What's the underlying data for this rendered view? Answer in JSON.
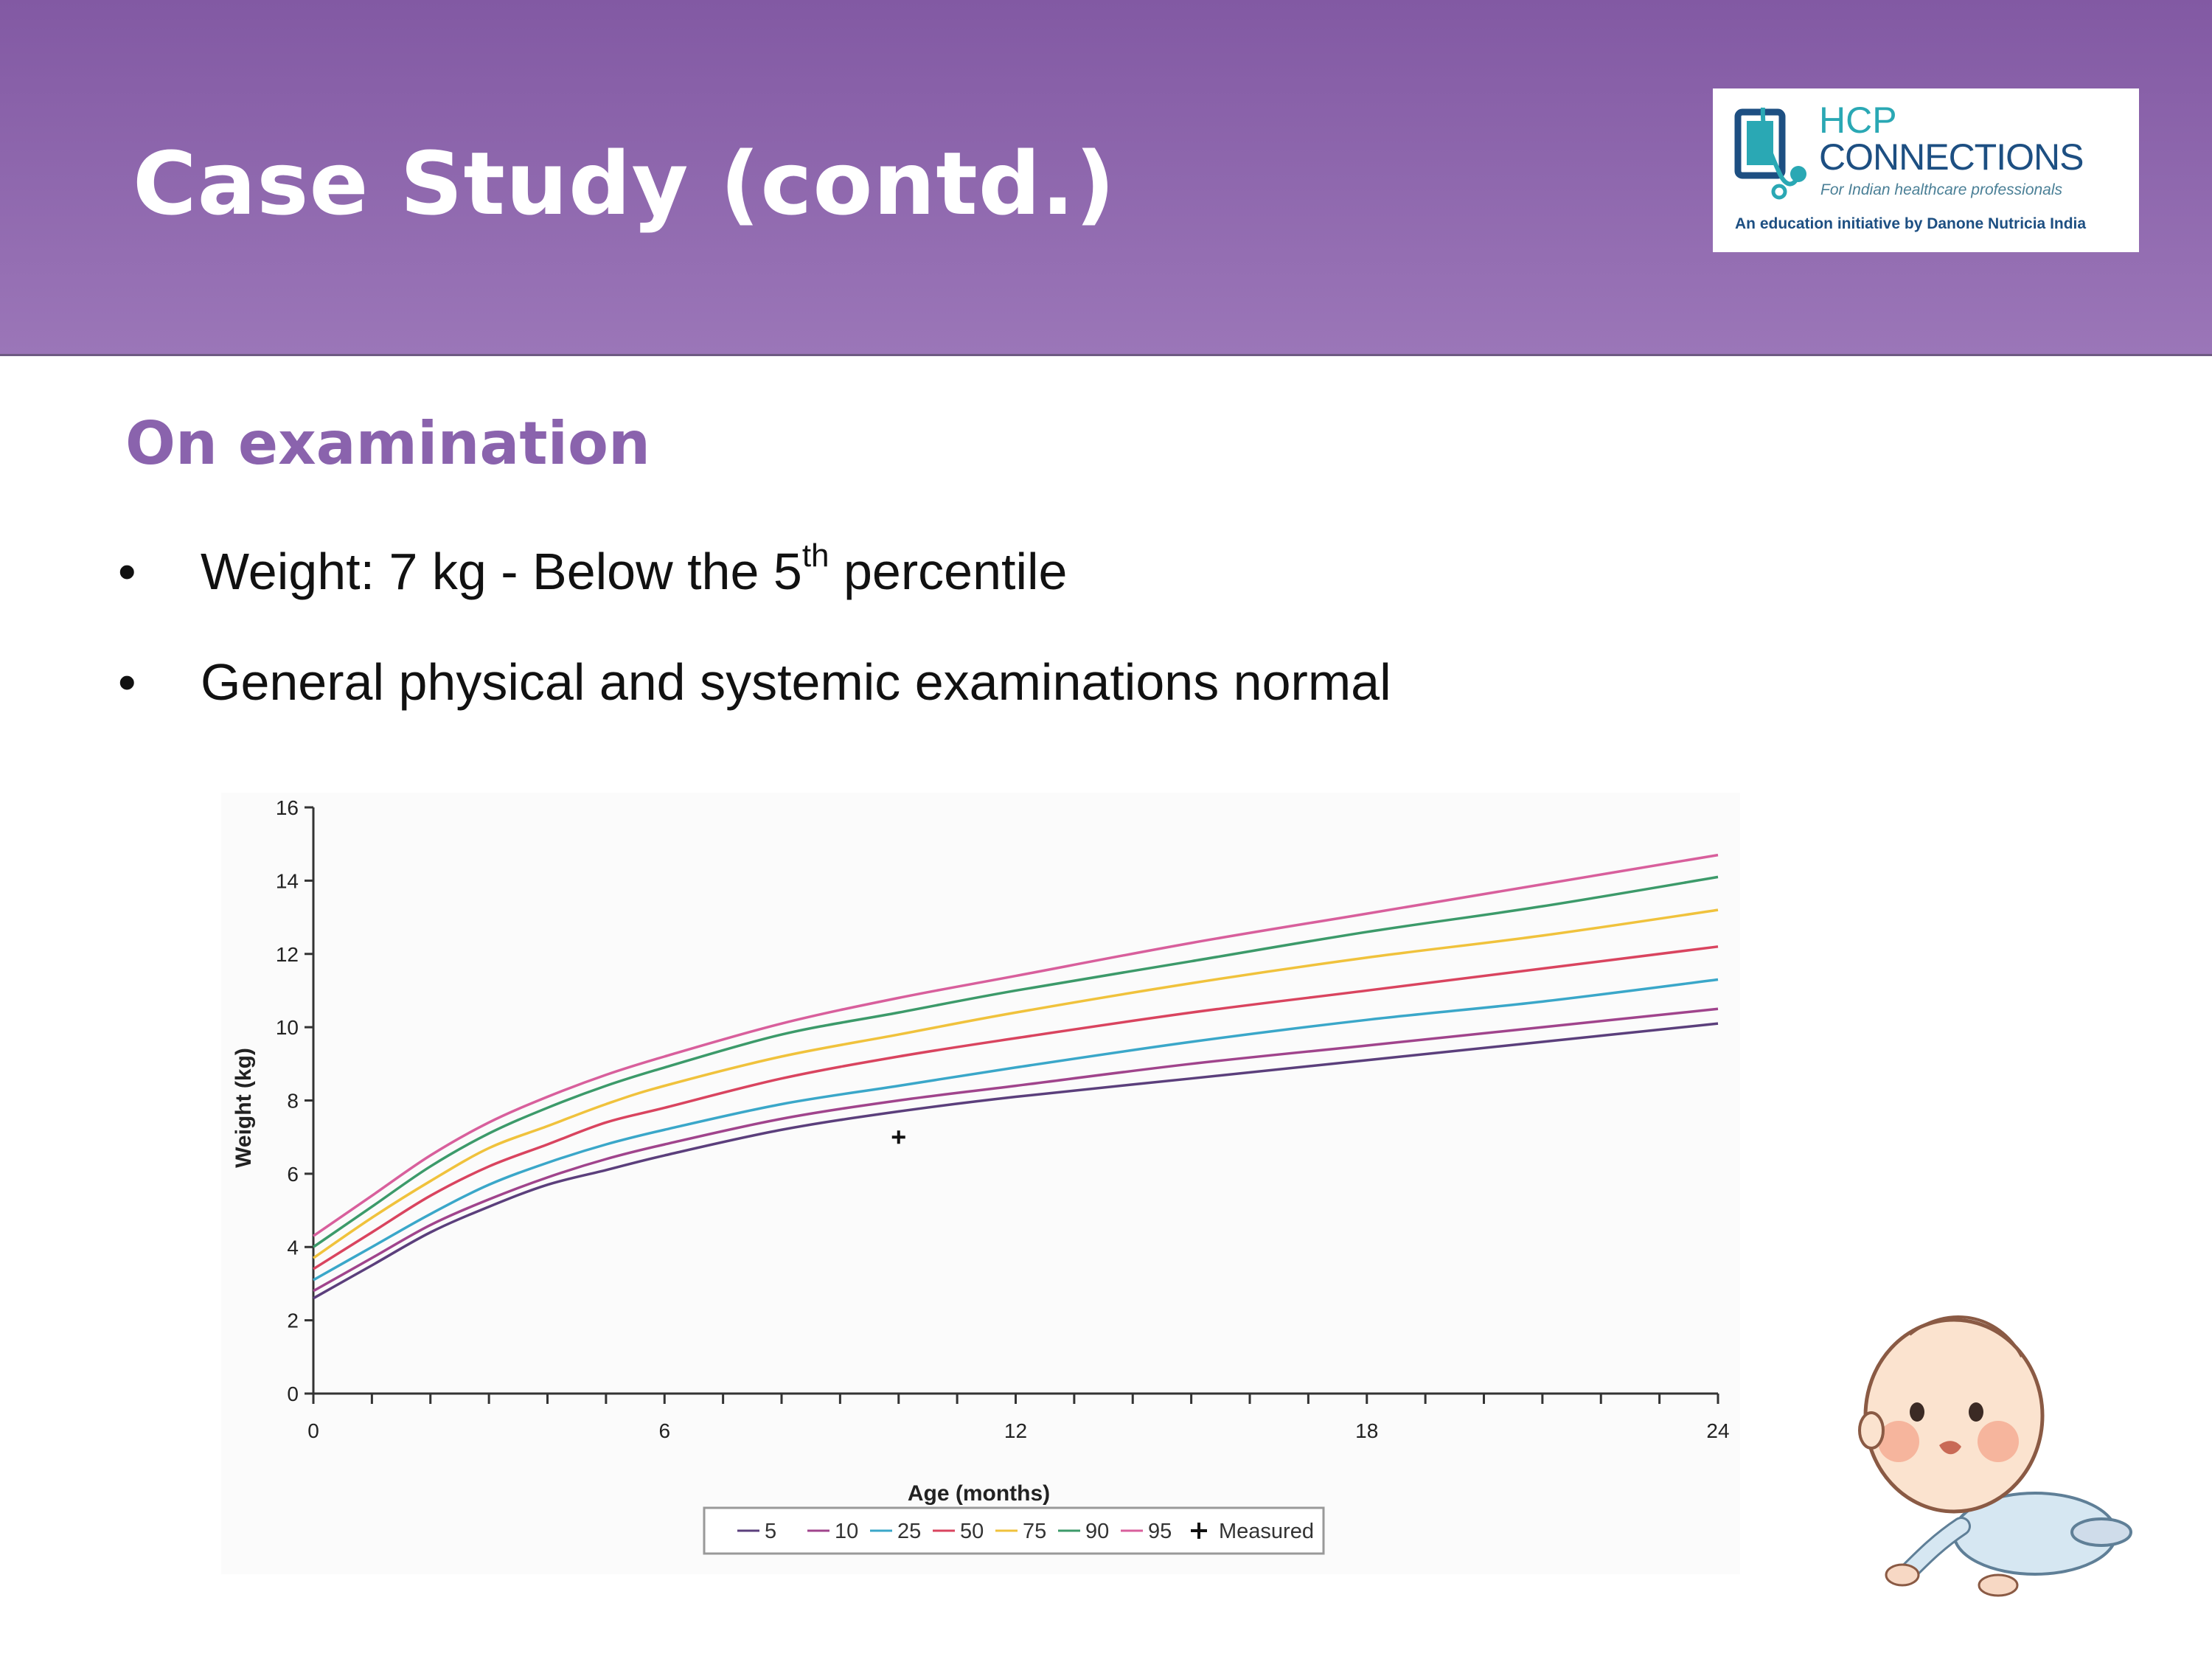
{
  "slide": {
    "title": "Case Study (contd.)",
    "section_heading": "On examination",
    "bullet_marker": "•",
    "bullets": [
      {
        "prefix": "Weight: 7 kg - Below the 5",
        "sup": "th",
        "suffix": " percentile"
      },
      {
        "text": "General physical and systemic examinations normal"
      }
    ]
  },
  "logo": {
    "line1": "HCP",
    "line2": "CONNECTIONS",
    "tagline": "For Indian healthcare professionals",
    "footer": "An education initiative by Danone Nutricia India"
  },
  "colors": {
    "header": "#8a63ad",
    "heading": "#8a63ad",
    "p5": "#5b3f7c",
    "p10": "#a0448c",
    "p25": "#3aa7c9",
    "p50": "#d9445f",
    "p75": "#f0c23c",
    "p90": "#3c9a6a",
    "p95": "#d85f9c"
  },
  "chart_data": {
    "type": "line",
    "title": "",
    "xlabel": "Age (months)",
    "ylabel": "Weight (kg)",
    "xlim": [
      0,
      24
    ],
    "ylim": [
      0,
      16
    ],
    "x_ticks": [
      0,
      6,
      12,
      18,
      24
    ],
    "y_ticks": [
      0,
      2,
      4,
      6,
      8,
      10,
      12,
      14,
      16
    ],
    "x": [
      0,
      1,
      2,
      3,
      4,
      5,
      6,
      8,
      10,
      12,
      15,
      18,
      21,
      24
    ],
    "series": [
      {
        "name": "5",
        "color": "#5b3f7c",
        "values": [
          2.6,
          3.5,
          4.4,
          5.1,
          5.7,
          6.1,
          6.5,
          7.2,
          7.7,
          8.1,
          8.6,
          9.1,
          9.6,
          10.1
        ]
      },
      {
        "name": "10",
        "color": "#a0448c",
        "values": [
          2.8,
          3.7,
          4.6,
          5.3,
          5.9,
          6.4,
          6.8,
          7.5,
          8.0,
          8.4,
          9.0,
          9.5,
          10.0,
          10.5
        ]
      },
      {
        "name": "25",
        "color": "#3aa7c9",
        "values": [
          3.1,
          4.0,
          4.9,
          5.7,
          6.3,
          6.8,
          7.2,
          7.9,
          8.4,
          8.9,
          9.6,
          10.2,
          10.7,
          11.3
        ]
      },
      {
        "name": "50",
        "color": "#d9445f",
        "values": [
          3.4,
          4.4,
          5.4,
          6.2,
          6.8,
          7.4,
          7.8,
          8.6,
          9.2,
          9.7,
          10.4,
          11.0,
          11.6,
          12.2
        ]
      },
      {
        "name": "75",
        "color": "#f0c23c",
        "values": [
          3.7,
          4.8,
          5.8,
          6.7,
          7.3,
          7.9,
          8.4,
          9.2,
          9.8,
          10.4,
          11.2,
          11.9,
          12.5,
          13.2
        ]
      },
      {
        "name": "90",
        "color": "#3c9a6a",
        "values": [
          4.0,
          5.1,
          6.2,
          7.1,
          7.8,
          8.4,
          8.9,
          9.8,
          10.4,
          11.0,
          11.8,
          12.6,
          13.3,
          14.1
        ]
      },
      {
        "name": "95",
        "color": "#d85f9c",
        "values": [
          4.3,
          5.4,
          6.5,
          7.4,
          8.1,
          8.7,
          9.2,
          10.1,
          10.8,
          11.4,
          12.3,
          13.1,
          13.9,
          14.7
        ]
      }
    ],
    "measured": {
      "name": "Measured",
      "x": 10,
      "y": 7,
      "marker": "+"
    },
    "legend_position": "bottom-center"
  }
}
